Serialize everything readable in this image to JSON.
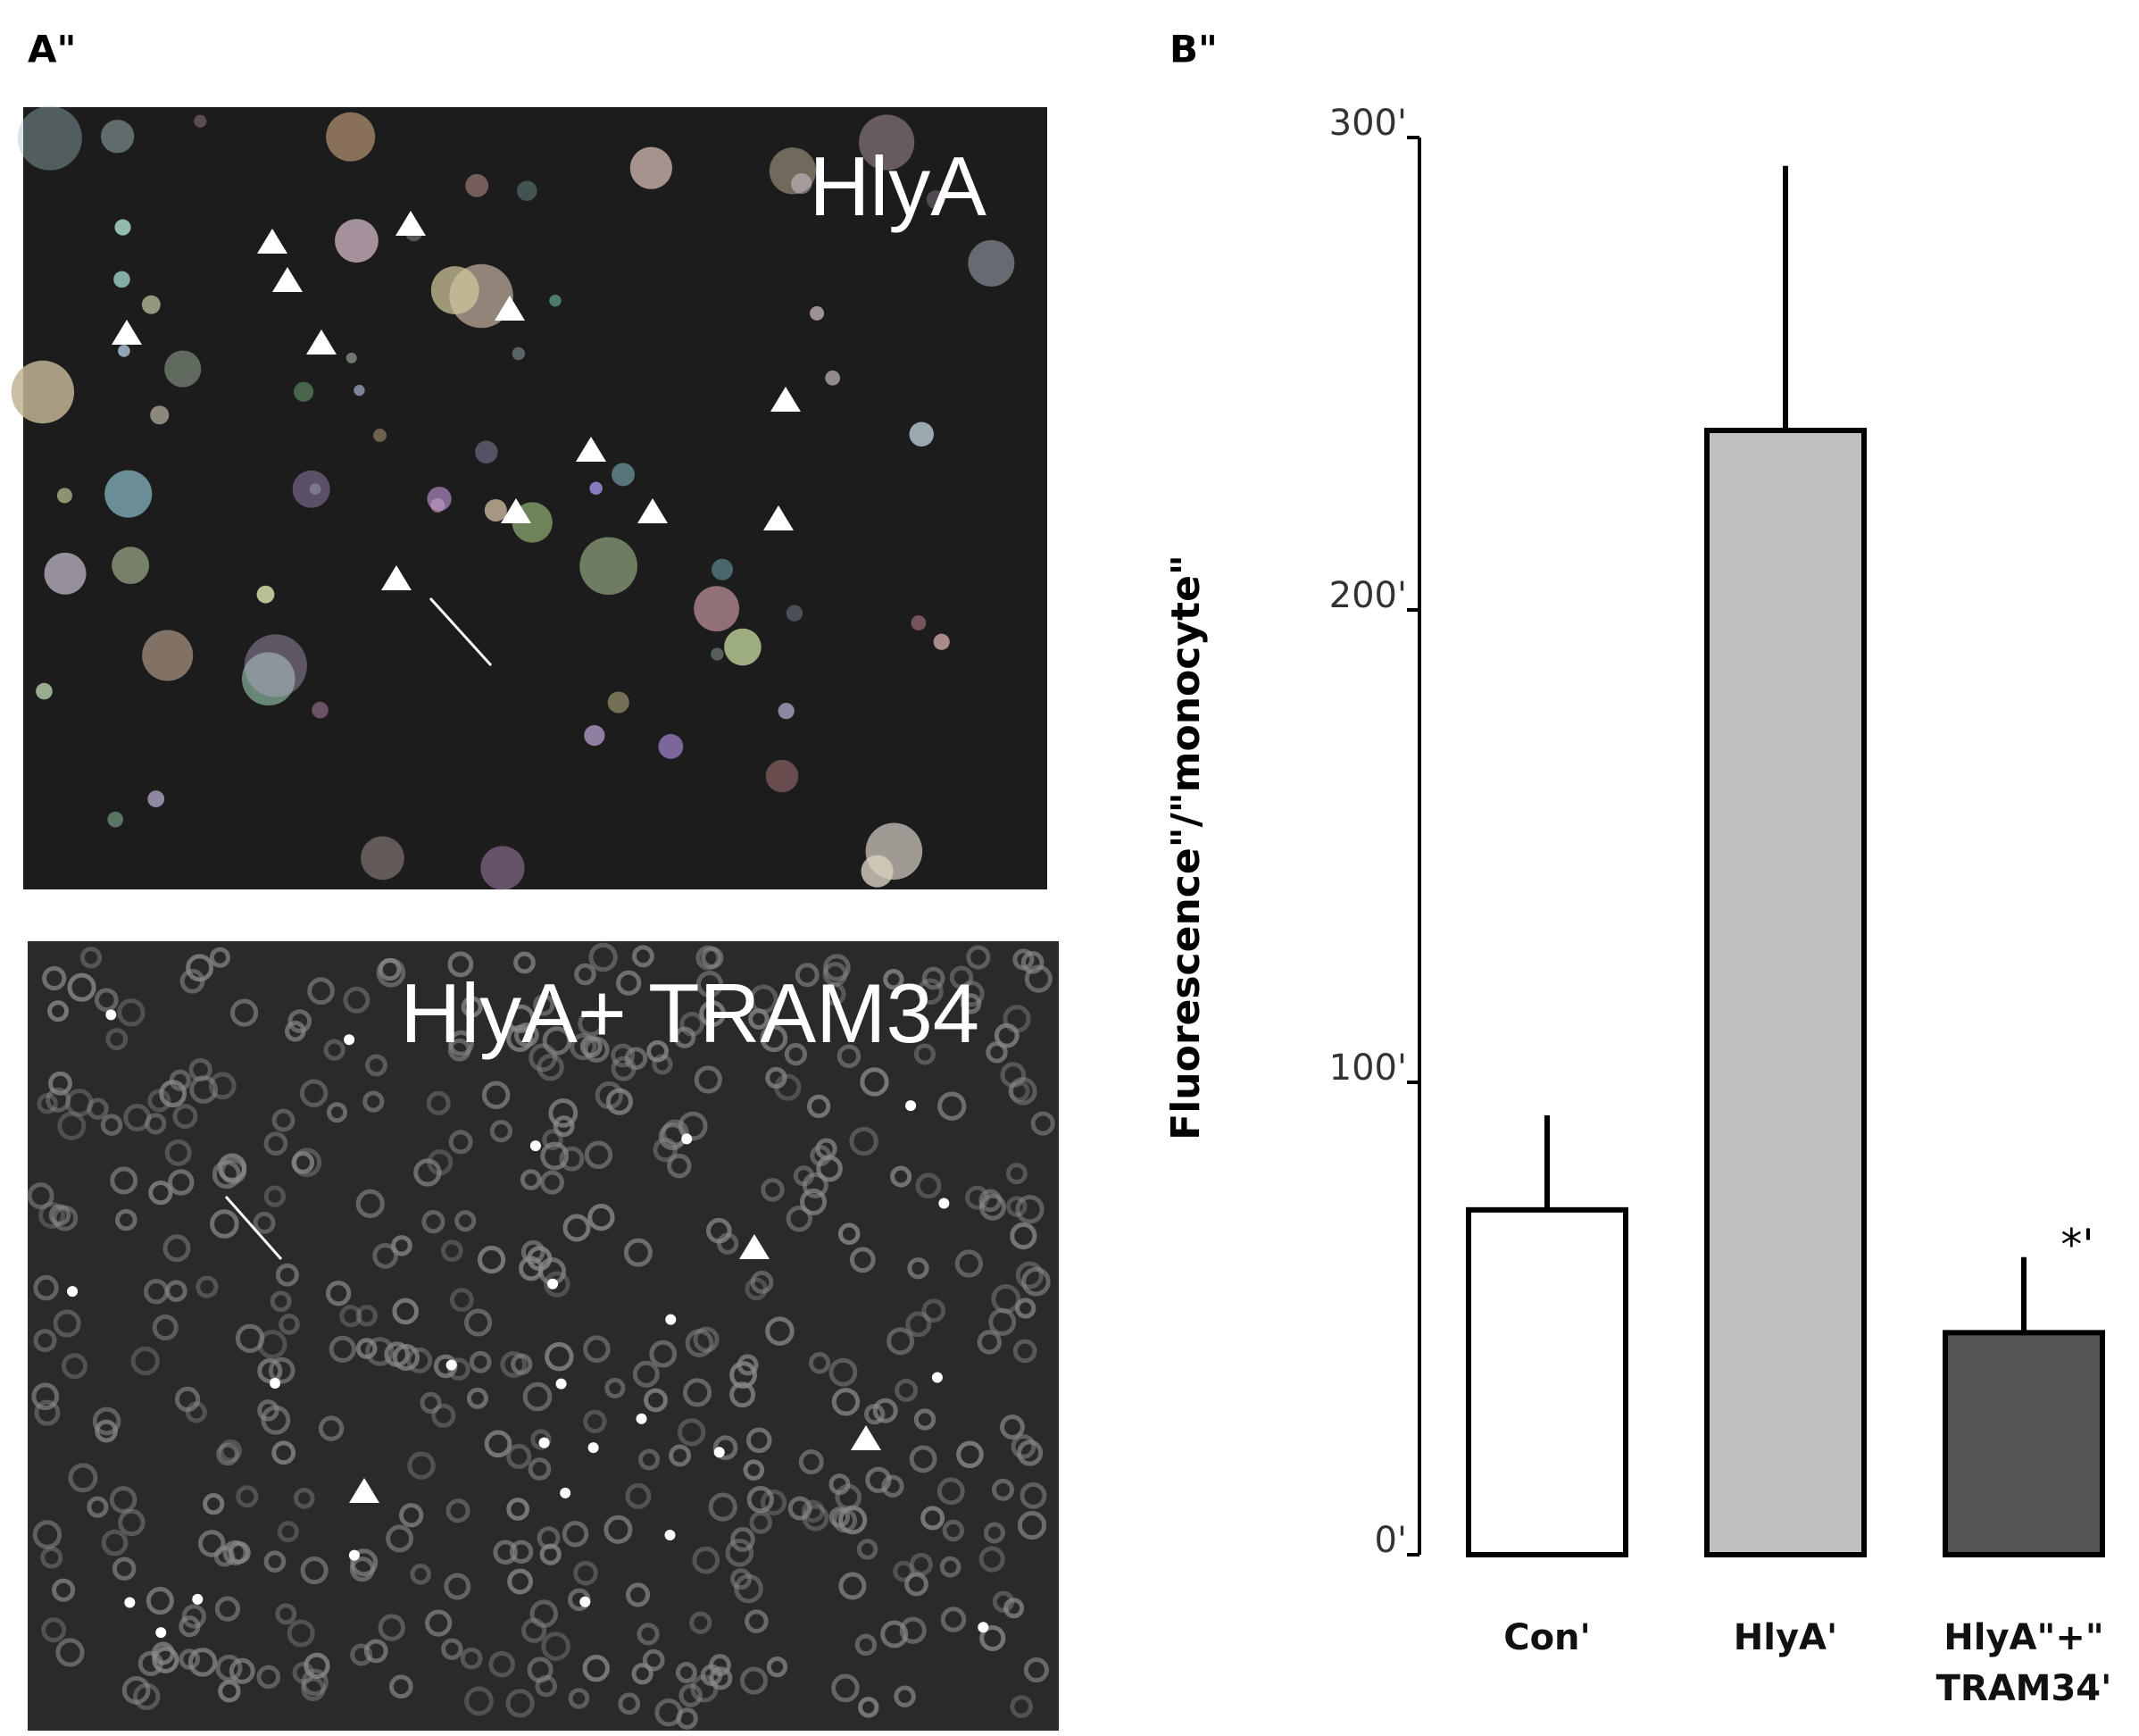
{
  "panels": {
    "a_label": "A\"",
    "b_label": "B\"",
    "image_top_label": "HlyA",
    "image_bottom_label": "HlyA+ TRAM34"
  },
  "chart_data": {
    "type": "bar",
    "y_label": "Fluorescence\"/\"monocyte\"",
    "categories": [
      "Con'",
      "HlyA'",
      "HlyA\"+\"\nTRAM34'"
    ],
    "values": [
      73,
      238,
      47
    ],
    "errors": [
      20,
      56,
      16
    ],
    "colors": [
      "#ffffff",
      "#c0c0c0",
      "#555555"
    ],
    "ylim": [
      0,
      300
    ],
    "yticks": [
      {
        "value": 0,
        "label": "0'"
      },
      {
        "value": 100,
        "label": "100'"
      },
      {
        "value": 200,
        "label": "200'"
      },
      {
        "value": 300,
        "label": "300'"
      }
    ],
    "annotation": "*'",
    "grid": false
  }
}
